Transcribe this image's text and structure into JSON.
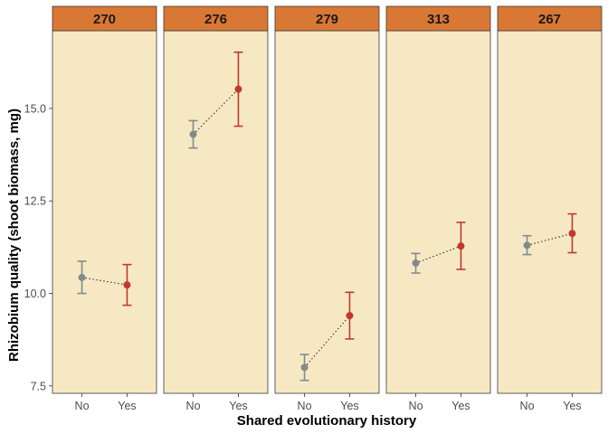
{
  "chart_data": {
    "type": "scatter",
    "subtype": "faceted point-range with error bars",
    "xlabel": "Shared evolutionary history",
    "ylabel": "Rhizobium quality (shoot biomass, mg)",
    "categories": [
      "No",
      "Yes"
    ],
    "ylim": [
      7.3,
      17.1
    ],
    "yticks": [
      7.5,
      10.0,
      12.5,
      15.0
    ],
    "ytick_labels": [
      "7.5",
      "10.0",
      "12.5",
      "15.0"
    ],
    "grid": false,
    "colors": {
      "No": "#7F8C8D",
      "Yes": "#C0392B",
      "panel_background": "#F7E8C4",
      "strip_background": "#D97834"
    },
    "facets": [
      {
        "label": "270",
        "points": [
          {
            "x": "No",
            "y": 10.43,
            "lower": 10.0,
            "upper": 10.87
          },
          {
            "x": "Yes",
            "y": 10.23,
            "lower": 9.68,
            "upper": 10.78
          }
        ]
      },
      {
        "label": "276",
        "points": [
          {
            "x": "No",
            "y": 14.3,
            "lower": 13.93,
            "upper": 14.67
          },
          {
            "x": "Yes",
            "y": 15.52,
            "lower": 14.52,
            "upper": 16.52
          }
        ]
      },
      {
        "label": "279",
        "points": [
          {
            "x": "No",
            "y": 8.0,
            "lower": 7.65,
            "upper": 8.35
          },
          {
            "x": "Yes",
            "y": 9.4,
            "lower": 8.77,
            "upper": 10.03
          }
        ]
      },
      {
        "label": "313",
        "points": [
          {
            "x": "No",
            "y": 10.82,
            "lower": 10.55,
            "upper": 11.08
          },
          {
            "x": "Yes",
            "y": 11.28,
            "lower": 10.65,
            "upper": 11.92
          }
        ]
      },
      {
        "label": "267",
        "points": [
          {
            "x": "No",
            "y": 11.3,
            "lower": 11.05,
            "upper": 11.56
          },
          {
            "x": "Yes",
            "y": 11.62,
            "lower": 11.1,
            "upper": 12.15
          }
        ]
      }
    ]
  }
}
